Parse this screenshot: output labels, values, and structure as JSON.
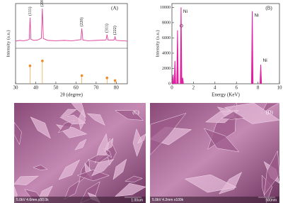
{
  "chart_data": [
    {
      "type": "line",
      "panel_label": "(A)",
      "x_label": "2θ (degree)",
      "y_label": "Intensity (a.u.)",
      "x": [
        30,
        32,
        34,
        36,
        36.8,
        37.2,
        37.6,
        39,
        41,
        42.8,
        43.3,
        43.8,
        46,
        50,
        54,
        58,
        62.4,
        62.9,
        63.4,
        66,
        70,
        74.9,
        75.4,
        75.9,
        78.9,
        79.4,
        79.9,
        83,
        85.5
      ],
      "values": [
        10,
        12,
        11,
        13,
        15,
        75,
        15,
        12,
        13,
        18,
        100,
        17,
        12,
        11,
        12,
        11,
        14,
        45,
        13,
        11,
        12,
        13,
        28,
        13,
        13,
        22,
        12,
        11,
        10
      ],
      "color": "#e0409a",
      "xlim": [
        30,
        85.5
      ],
      "xticks": [
        30,
        40,
        50,
        60,
        70,
        80
      ],
      "ylim": [
        0,
        100
      ],
      "reference": {
        "x": [
          37.2,
          43.3,
          62.9,
          75.4,
          79.4
        ],
        "values": [
          55,
          70,
          25,
          18,
          10
        ],
        "color": "#f08a24",
        "peak_labels": [
          "(111)",
          "(200)",
          "(220)",
          "(311)",
          "(222)"
        ]
      }
    },
    {
      "type": "spectrum",
      "panel_label": "(B)",
      "x_label": "Energy  (KeV)",
      "y_label": "Intensity (a.u.)",
      "x": [
        0.1,
        0.28,
        0.52,
        0.85,
        1.0,
        7.47,
        8.26
      ],
      "values": [
        1200,
        3000,
        7000,
        10000,
        800,
        9500,
        2500
      ],
      "peak_labels": [
        null,
        null,
        "O",
        "Ni",
        null,
        "Ni",
        "Ni"
      ],
      "color": "#e020a0",
      "xlim": [
        0,
        10
      ],
      "xticks": [
        0,
        2,
        4,
        6,
        8,
        10
      ],
      "ylim": [
        0,
        10500
      ],
      "yticks": [
        0,
        2000,
        4000,
        6000,
        8000,
        10000
      ]
    }
  ],
  "images": [
    {
      "label": "(C)",
      "info": "5.0kV 4.6mm x50.0k",
      "scale": "1.00um"
    },
    {
      "label": "(D)",
      "info": "5.0kV 4.2mm x100k",
      "scale": "500nm"
    }
  ]
}
